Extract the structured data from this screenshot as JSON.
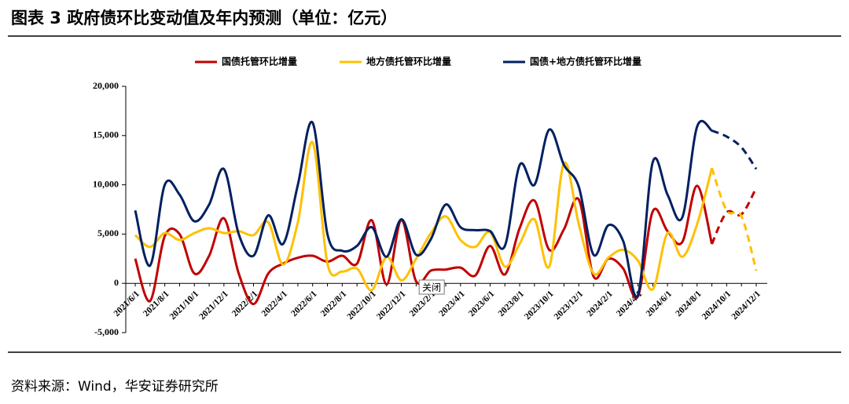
{
  "chart_data": {
    "type": "line",
    "title": "图表 3 政府债环比变动值及年内预测（单位：亿元）",
    "source": "资料来源：Wind，华安证券研究所",
    "annotation": "关闭",
    "categories": [
      "2021/6/1",
      null,
      "2021/8/1",
      null,
      "2021/10/1",
      null,
      "2021/12/1",
      null,
      "2022/2/1",
      null,
      "2022/4/1",
      null,
      "2022/6/1",
      null,
      "2022/8/1",
      null,
      "2022/10/1",
      null,
      "2022/12/1",
      null,
      "2023/2/1",
      null,
      "2023/4/1",
      null,
      "2023/6/1",
      null,
      "2023/8/1",
      null,
      "2023/10/1",
      null,
      "2023/12/1",
      null,
      "2024/2/1",
      null,
      "2024/4/1",
      null,
      "2024/6/1",
      null,
      "2024/8/1",
      null,
      "2024/10/1",
      null,
      "2024/12/1"
    ],
    "dash_from_index": 39,
    "series": [
      {
        "name": "国债托管环比增量",
        "color": "#c00000",
        "values": [
          2500,
          -1800,
          4800,
          5000,
          1000,
          2800,
          6600,
          1000,
          -2100,
          1000,
          2000,
          2600,
          2800,
          2200,
          2800,
          2000,
          6400,
          -100,
          6400,
          200,
          1300,
          1400,
          1600,
          800,
          3800,
          900,
          5600,
          8400,
          3400,
          5500,
          8500,
          700,
          2500,
          1500,
          -1300,
          7300,
          5300,
          4200,
          9900,
          4000,
          7200,
          7000,
          9700
        ]
      },
      {
        "name": "地方债托管环比增量",
        "color": "#ffc000",
        "values": [
          4900,
          3700,
          5100,
          4400,
          5100,
          5600,
          5100,
          5300,
          4900,
          6200,
          1900,
          6200,
          14300,
          2000,
          1200,
          1500,
          -700,
          2700,
          300,
          2500,
          5100,
          6800,
          4400,
          3700,
          5200,
          1700,
          4000,
          6500,
          1700,
          12200,
          6000,
          1000,
          2600,
          3400,
          2300,
          -600,
          5100,
          2700,
          6000,
          11700,
          7400,
          6800,
          1300
        ]
      },
      {
        "name": "国债+地方债托管环比增量",
        "color": "#002060",
        "values": [
          7400,
          1800,
          10000,
          9000,
          6300,
          8000,
          11600,
          5000,
          2800,
          6900,
          4000,
          10000,
          16300,
          5000,
          3300,
          3800,
          5700,
          2700,
          6500,
          2900,
          4500,
          8000,
          5700,
          5400,
          5300,
          3800,
          12000,
          10000,
          15600,
          12000,
          9800,
          2900,
          5900,
          4300,
          -1200,
          12300,
          9000,
          6700,
          15900,
          15500,
          14900,
          13800,
          11600
        ]
      }
    ],
    "ylim": [
      -5000,
      20000
    ],
    "yticks": [
      {
        "value": -5000,
        "label": "-5,000"
      },
      0,
      {
        "value": 5000,
        "label": "5,000"
      },
      {
        "value": 10000,
        "label": "10,000"
      },
      {
        "value": 15000,
        "label": "15,000"
      },
      {
        "value": 20000,
        "label": "20,000"
      }
    ],
    "legend": "top"
  }
}
